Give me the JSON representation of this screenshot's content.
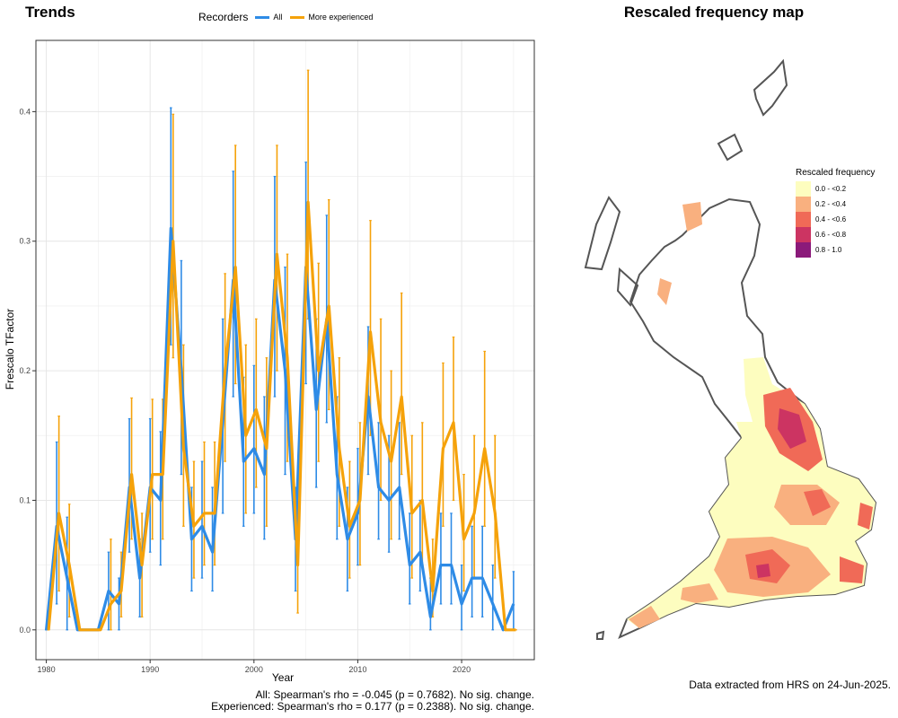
{
  "left_title": "Trends",
  "right_title": "Rescaled frequency map",
  "legend": {
    "title": "Recorders",
    "items": [
      {
        "label": "All",
        "color": "#2e8be6"
      },
      {
        "label": "More experienced",
        "color": "#f5a20a"
      }
    ]
  },
  "stats": {
    "all": "All: Spearman's rho = -0.045 (p = 0.7682). No sig. change.",
    "experienced": "Experienced: Spearman's rho = 0.177 (p = 0.2388). No sig. change."
  },
  "footer": "Data extracted from HRS on 24-Jun-2025.",
  "chart_data": {
    "type": "line",
    "title": "Trends",
    "xlabel": "Year",
    "ylabel": "Frescalo TFactor",
    "xlim": [
      1979,
      2027
    ],
    "ylim": [
      -0.023,
      0.455
    ],
    "x_ticks": [
      1980,
      1990,
      2000,
      2010,
      2020
    ],
    "y_ticks": [
      0.0,
      0.1,
      0.2,
      0.3,
      0.4
    ],
    "y_tick_labels": [
      "0.0",
      "0.1",
      "0.2",
      "0.3",
      "0.4"
    ],
    "grid": true,
    "x": [
      1980,
      1981,
      1982,
      1983,
      1984,
      1985,
      1986,
      1987,
      1988,
      1989,
      1990,
      1991,
      1992,
      1993,
      1994,
      1995,
      1996,
      1997,
      1998,
      1999,
      2000,
      2001,
      2002,
      2003,
      2004,
      2005,
      2006,
      2007,
      2008,
      2009,
      2010,
      2011,
      2012,
      2013,
      2014,
      2015,
      2016,
      2017,
      2018,
      2019,
      2020,
      2021,
      2022,
      2023,
      2024,
      2025
    ],
    "series": [
      {
        "name": "All",
        "color": "#2e8be6",
        "values": [
          0.0,
          0.08,
          0.04,
          0.0,
          0.0,
          0.0,
          0.03,
          0.02,
          0.11,
          0.04,
          0.11,
          0.1,
          0.31,
          0.2,
          0.07,
          0.08,
          0.06,
          0.16,
          0.27,
          0.13,
          0.14,
          0.12,
          0.27,
          0.2,
          0.07,
          0.28,
          0.17,
          0.24,
          0.12,
          0.07,
          0.09,
          0.18,
          0.11,
          0.1,
          0.11,
          0.05,
          0.06,
          0.01,
          0.05,
          0.05,
          0.02,
          0.04,
          0.04,
          0.02,
          0.0,
          0.02
        ],
        "lower": [
          0.0,
          0.02,
          0.0,
          0.0,
          0.0,
          0.0,
          0.0,
          0.0,
          0.06,
          0.01,
          0.06,
          0.05,
          0.22,
          0.12,
          0.03,
          0.04,
          0.03,
          0.09,
          0.18,
          0.08,
          0.09,
          0.07,
          0.18,
          0.12,
          0.03,
          0.19,
          0.11,
          0.16,
          0.07,
          0.03,
          0.05,
          0.12,
          0.07,
          0.06,
          0.07,
          0.02,
          0.03,
          0.0,
          0.02,
          0.02,
          0.0,
          0.01,
          0.01,
          0.0,
          0.0,
          0.0
        ],
        "upper": [
          0.0,
          0.145,
          0.087,
          0.0,
          0.0,
          0.0,
          0.06,
          0.04,
          0.163,
          0.07,
          0.163,
          0.153,
          0.403,
          0.285,
          0.11,
          0.13,
          0.11,
          0.24,
          0.354,
          0.195,
          0.204,
          0.18,
          0.35,
          0.28,
          0.11,
          0.361,
          0.24,
          0.32,
          0.18,
          0.11,
          0.14,
          0.234,
          0.16,
          0.15,
          0.16,
          0.09,
          0.1,
          0.04,
          0.09,
          0.09,
          0.05,
          0.08,
          0.08,
          0.05,
          0.0,
          0.045
        ]
      },
      {
        "name": "More experienced",
        "color": "#f5a20a",
        "values": [
          0.0,
          0.09,
          0.05,
          0.0,
          0.0,
          0.0,
          0.02,
          0.03,
          0.12,
          0.05,
          0.12,
          0.12,
          0.3,
          0.14,
          0.08,
          0.09,
          0.09,
          0.2,
          0.28,
          0.15,
          0.17,
          0.14,
          0.29,
          0.21,
          0.05,
          0.33,
          0.2,
          0.25,
          0.14,
          0.08,
          0.1,
          0.23,
          0.16,
          0.13,
          0.18,
          0.09,
          0.1,
          0.03,
          0.14,
          0.16,
          0.07,
          0.09,
          0.14,
          0.09,
          0.0,
          0.0
        ],
        "lower": [
          0.0,
          0.03,
          0.01,
          0.0,
          0.0,
          0.0,
          0.0,
          0.01,
          0.07,
          0.01,
          0.07,
          0.07,
          0.21,
          0.08,
          0.04,
          0.05,
          0.05,
          0.13,
          0.19,
          0.09,
          0.11,
          0.08,
          0.2,
          0.13,
          0.013,
          0.24,
          0.13,
          0.17,
          0.08,
          0.04,
          0.05,
          0.15,
          0.1,
          0.07,
          0.12,
          0.04,
          0.05,
          0.01,
          0.08,
          0.1,
          0.03,
          0.04,
          0.08,
          0.04,
          0.0,
          0.0
        ],
        "upper": [
          0.0,
          0.165,
          0.097,
          0.0,
          0.0,
          0.0,
          0.07,
          0.06,
          0.179,
          0.09,
          0.178,
          0.178,
          0.398,
          0.22,
          0.13,
          0.145,
          0.145,
          0.275,
          0.374,
          0.22,
          0.24,
          0.21,
          0.374,
          0.29,
          0.1,
          0.432,
          0.283,
          0.332,
          0.21,
          0.13,
          0.16,
          0.316,
          0.24,
          0.2,
          0.26,
          0.15,
          0.16,
          0.07,
          0.206,
          0.226,
          0.12,
          0.15,
          0.215,
          0.15,
          0.0,
          0.0
        ]
      }
    ]
  },
  "map": {
    "legend_title": "Rescaled frequency",
    "bins": [
      {
        "label": "0.0 - <0.2",
        "color": "#fdfdbf"
      },
      {
        "label": "0.2 - <0.4",
        "color": "#f9b07f"
      },
      {
        "label": "0.4 - <0.6",
        "color": "#f06a57"
      },
      {
        "label": "0.6 - <0.8",
        "color": "#cc3462"
      },
      {
        "label": "0.8 - 1.0",
        "color": "#8b1a7a"
      }
    ],
    "outline_color": "#555555"
  }
}
